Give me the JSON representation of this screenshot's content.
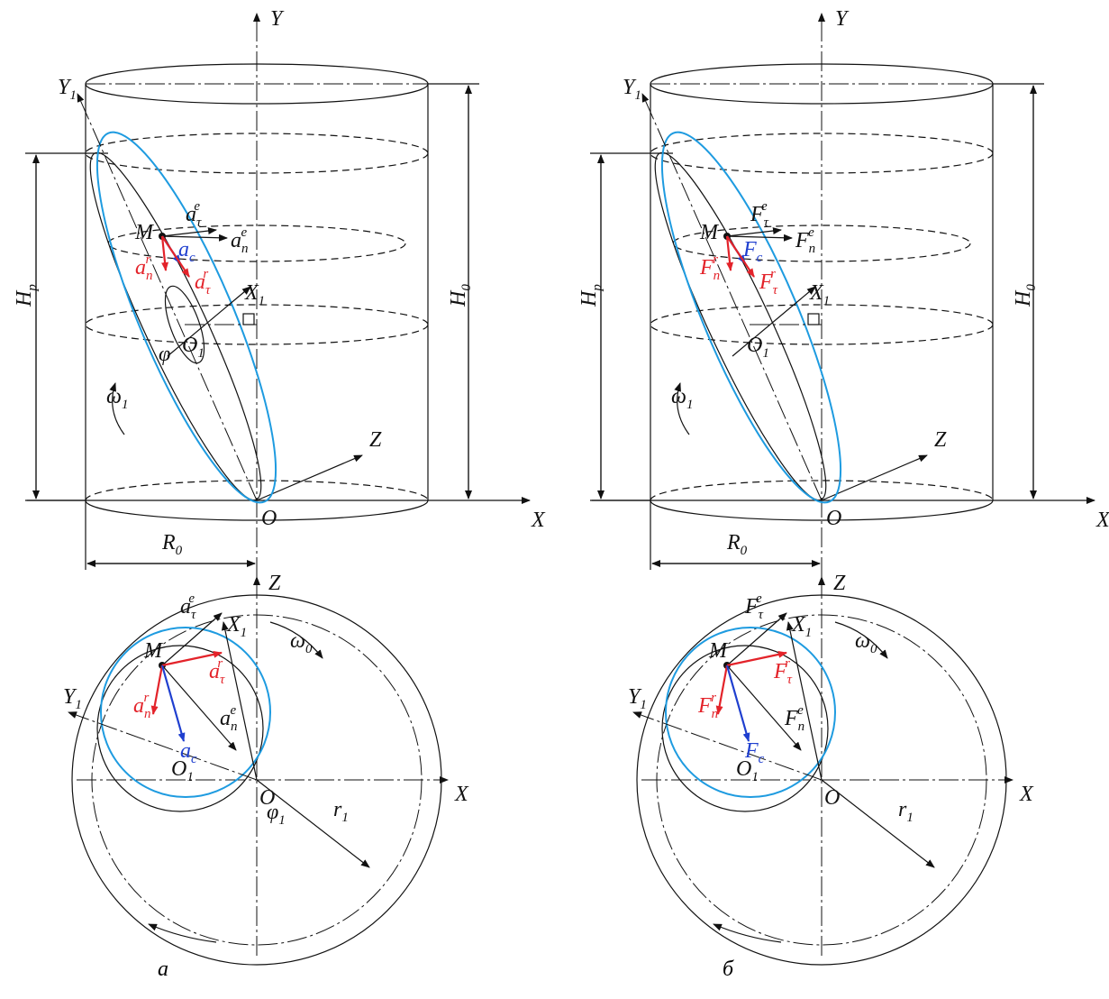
{
  "panels": [
    {
      "caption": "а",
      "side": {
        "Y": "Y",
        "Y1": {
          "base": "Y",
          "sub": "1"
        },
        "X": "X",
        "Z": "Z",
        "O": "O",
        "M": "M",
        "X1": {
          "base": "X",
          "sub": "1"
        },
        "O1": {
          "base": "O",
          "sub": "1"
        },
        "Hp": {
          "base": "H",
          "sub": "p"
        },
        "H0": {
          "base": "H",
          "sub": "0"
        },
        "R0": {
          "base": "R",
          "sub": "0"
        },
        "w1": {
          "base": "ω",
          "sub": "1"
        },
        "phi": "φ",
        "t_e": {
          "base": "a",
          "sub": "τ",
          "sup": "e"
        },
        "n_e": {
          "base": "a",
          "sub": "n",
          "sup": "e"
        },
        "c": {
          "base": "a",
          "sub": "c"
        },
        "n_r": {
          "base": "a",
          "sub": "n",
          "sup": "r"
        },
        "t_r": {
          "base": "a",
          "sub": "τ",
          "sup": "r"
        }
      },
      "top": {
        "Z": "Z",
        "X": "X",
        "O": "O",
        "M": "M",
        "X1": {
          "base": "X",
          "sub": "1"
        },
        "Y1": {
          "base": "Y",
          "sub": "1"
        },
        "O1": {
          "base": "O",
          "sub": "1"
        },
        "r1": {
          "base": "r",
          "sub": "1"
        },
        "w0": {
          "base": "ω",
          "sub": "0"
        },
        "phi1": {
          "base": "φ",
          "sub": "1"
        },
        "t_e": {
          "base": "a",
          "sub": "τ",
          "sup": "e"
        },
        "t_r": {
          "base": "a",
          "sub": "τ",
          "sup": "r"
        },
        "n_r": {
          "base": "a",
          "sub": "n",
          "sup": "r"
        },
        "c": {
          "base": "a",
          "sub": "c"
        },
        "n_e": {
          "base": "a",
          "sub": "n",
          "sup": "e"
        }
      }
    },
    {
      "caption": "б",
      "side": {
        "Y": "Y",
        "Y1": {
          "base": "Y",
          "sub": "1"
        },
        "X": "X",
        "Z": "Z",
        "O": "O",
        "M": "M",
        "X1": {
          "base": "X",
          "sub": "1"
        },
        "O1": {
          "base": "O",
          "sub": "1"
        },
        "Hp": {
          "base": "H",
          "sub": "p"
        },
        "H0": {
          "base": "H",
          "sub": "0"
        },
        "R0": {
          "base": "R",
          "sub": "0"
        },
        "w1": {
          "base": "ω",
          "sub": "1"
        },
        "t_e": {
          "base": "F",
          "sub": "τ",
          "sup": "e"
        },
        "n_e": {
          "base": "F",
          "sub": "n",
          "sup": "e"
        },
        "c": {
          "base": "F",
          "sub": "c"
        },
        "n_r": {
          "base": "F",
          "sub": "n",
          "sup": "r"
        },
        "t_r": {
          "base": "F",
          "sub": "τ",
          "sup": "r"
        }
      },
      "top": {
        "Z": "Z",
        "X": "X",
        "O": "O",
        "M": "M",
        "X1": {
          "base": "X",
          "sub": "1"
        },
        "Y1": {
          "base": "Y",
          "sub": "1"
        },
        "O1": {
          "base": "O",
          "sub": "1"
        },
        "r1": {
          "base": "r",
          "sub": "1"
        },
        "w0": {
          "base": "ω",
          "sub": "0"
        },
        "t_e": {
          "base": "F",
          "sub": "τ",
          "sup": "e"
        },
        "t_r": {
          "base": "F",
          "sub": "τ",
          "sup": "r"
        },
        "n_r": {
          "base": "F",
          "sub": "n",
          "sup": "r"
        },
        "c": {
          "base": "F",
          "sub": "c"
        },
        "n_e": {
          "base": "F",
          "sub": "n",
          "sup": "e"
        }
      }
    }
  ]
}
